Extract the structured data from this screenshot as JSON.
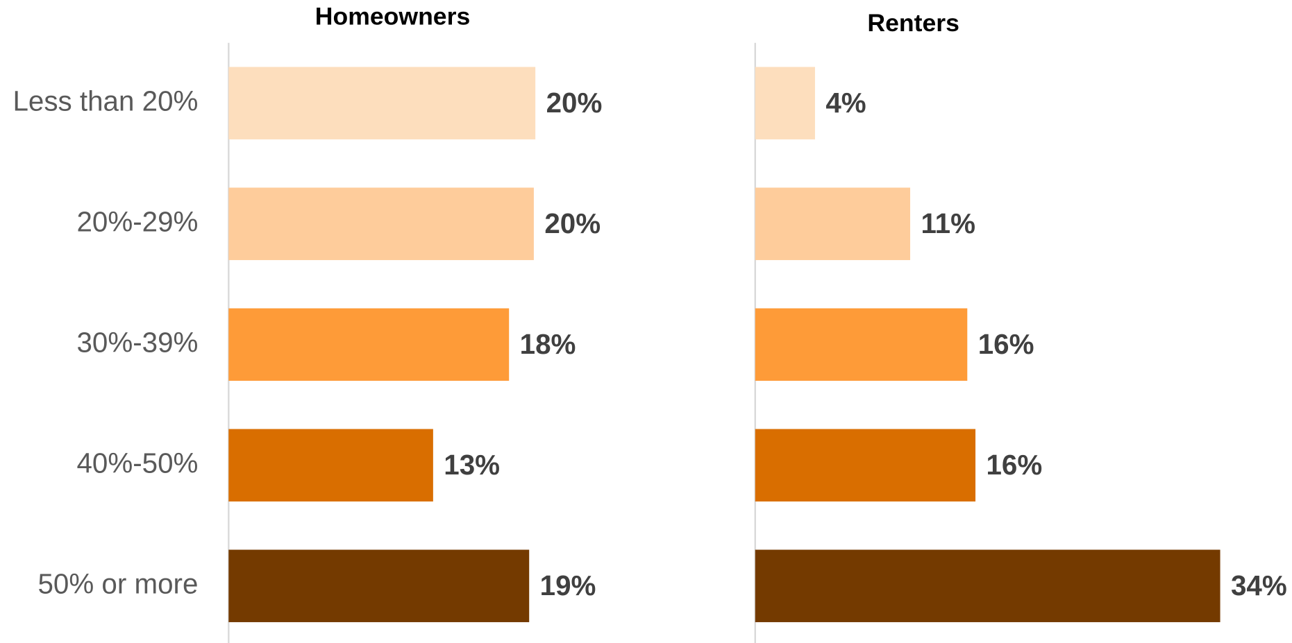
{
  "chart_data": [
    {
      "type": "bar",
      "orientation": "horizontal",
      "title": "Homeowners",
      "categories": [
        "Less than 20%",
        "20%-29%",
        "30%-39%",
        "40%-50%",
        "50% or more"
      ],
      "values": [
        19.8,
        19.7,
        18.1,
        13.2,
        19.4
      ],
      "value_labels": [
        "20%",
        "20%",
        "18%",
        "13%",
        "19%"
      ],
      "colors": [
        "#fddebd",
        "#fecc9b",
        "#fe9b38",
        "#d96e00",
        "#743a00"
      ],
      "xlim": [
        0,
        30
      ]
    },
    {
      "type": "bar",
      "orientation": "horizontal",
      "title": "Renters",
      "values": [
        4.4,
        11.4,
        15.6,
        16.2,
        34.2
      ],
      "value_labels": [
        "4%",
        "11%",
        "16%",
        "16%",
        "34%"
      ],
      "colors": [
        "#fddebd",
        "#fecc9b",
        "#fe9b38",
        "#d96e00",
        "#743a00"
      ],
      "xlim": [
        0,
        36
      ]
    }
  ]
}
